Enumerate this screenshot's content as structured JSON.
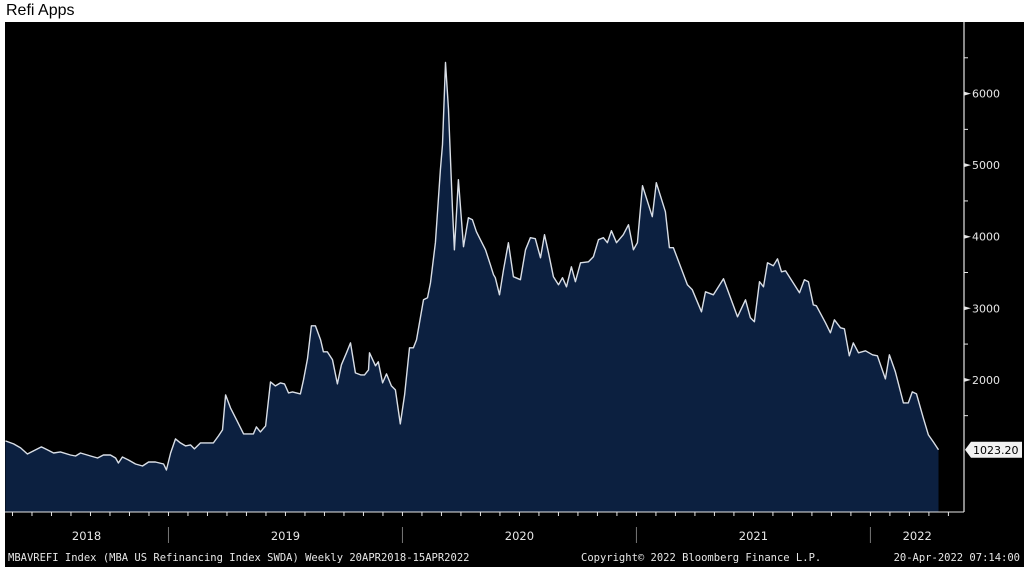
{
  "title": "Refi Apps",
  "footer": {
    "security": "MBAVREFI Index (MBA US Refinancing Index SWDA)  Weekly 20APR2018-15APR2022",
    "copyright": "Copyright© 2022 Bloomberg Finance L.P.",
    "timestamp": "20-Apr-2022 07:14:00"
  },
  "chart_data": {
    "type": "area",
    "title": "Refi Apps",
    "xlabel": "",
    "ylabel": "",
    "x_unit": "decimal year",
    "xlim": [
      2018.28,
      2022.4
    ],
    "ylim": [
      154,
      7000
    ],
    "y_ticks": [
      2000,
      3000,
      4000,
      5000,
      6000
    ],
    "y_tick_labels": [
      "2000",
      "3000",
      "4000",
      "5000",
      "6000"
    ],
    "x_tick_labels": [
      "2018",
      "2019",
      "2020",
      "2021",
      "2022"
    ],
    "year_label_positions": [
      2018.65,
      2019.5,
      2020.5,
      2021.5,
      2022.2
    ],
    "year_boundaries": [
      2019,
      2020,
      2021,
      2022
    ],
    "last_value": 1023.2,
    "last_value_label": "1023.20",
    "line_color": "#d9dee6",
    "fill_color": "#0c2040",
    "background": "#000000",
    "grid": false,
    "series": [
      {
        "name": "MBAVREFI Index",
        "points": [
          [
            2018.303,
            1147
          ],
          [
            2018.338,
            1105
          ],
          [
            2018.368,
            1049
          ],
          [
            2018.397,
            965
          ],
          [
            2018.423,
            1007
          ],
          [
            2018.457,
            1063
          ],
          [
            2018.483,
            1021
          ],
          [
            2018.509,
            979
          ],
          [
            2018.538,
            993
          ],
          [
            2018.581,
            951
          ],
          [
            2018.603,
            937
          ],
          [
            2018.624,
            979
          ],
          [
            2018.667,
            937
          ],
          [
            2018.697,
            909
          ],
          [
            2018.722,
            951
          ],
          [
            2018.752,
            951
          ],
          [
            2018.774,
            909
          ],
          [
            2018.786,
            839
          ],
          [
            2018.803,
            923
          ],
          [
            2018.829,
            881
          ],
          [
            2018.859,
            825
          ],
          [
            2018.889,
            797
          ],
          [
            2018.915,
            853
          ],
          [
            2018.944,
            853
          ],
          [
            2018.979,
            825
          ],
          [
            2018.991,
            741
          ],
          [
            2019.009,
            979
          ],
          [
            2019.03,
            1175
          ],
          [
            2019.051,
            1119
          ],
          [
            2019.073,
            1077
          ],
          [
            2019.094,
            1091
          ],
          [
            2019.111,
            1035
          ],
          [
            2019.137,
            1119
          ],
          [
            2019.171,
            1119
          ],
          [
            2019.192,
            1119
          ],
          [
            2019.214,
            1217
          ],
          [
            2019.231,
            1301
          ],
          [
            2019.244,
            1790
          ],
          [
            2019.265,
            1608
          ],
          [
            2019.291,
            1441
          ],
          [
            2019.321,
            1245
          ],
          [
            2019.342,
            1245
          ],
          [
            2019.363,
            1245
          ],
          [
            2019.376,
            1343
          ],
          [
            2019.393,
            1273
          ],
          [
            2019.415,
            1357
          ],
          [
            2019.436,
            1972
          ],
          [
            2019.457,
            1916
          ],
          [
            2019.479,
            1958
          ],
          [
            2019.496,
            1944
          ],
          [
            2019.513,
            1818
          ],
          [
            2019.53,
            1832
          ],
          [
            2019.564,
            1804
          ],
          [
            2019.577,
            2000
          ],
          [
            2019.594,
            2294
          ],
          [
            2019.611,
            2755
          ],
          [
            2019.628,
            2755
          ],
          [
            2019.65,
            2559
          ],
          [
            2019.662,
            2392
          ],
          [
            2019.679,
            2392
          ],
          [
            2019.701,
            2280
          ],
          [
            2019.722,
            1944
          ],
          [
            2019.739,
            2210
          ],
          [
            2019.761,
            2378
          ],
          [
            2019.778,
            2517
          ],
          [
            2019.799,
            2098
          ],
          [
            2019.821,
            2070
          ],
          [
            2019.838,
            2070
          ],
          [
            2019.855,
            2140
          ],
          [
            2019.859,
            2378
          ],
          [
            2019.885,
            2196
          ],
          [
            2019.897,
            2252
          ],
          [
            2019.915,
            1958
          ],
          [
            2019.932,
            2084
          ],
          [
            2019.953,
            1916
          ],
          [
            2019.97,
            1860
          ],
          [
            2019.991,
            1385
          ],
          [
            2020.009,
            1790
          ],
          [
            2020.03,
            2448
          ],
          [
            2020.047,
            2448
          ],
          [
            2020.06,
            2559
          ],
          [
            2020.09,
            3119
          ],
          [
            2020.107,
            3147
          ],
          [
            2020.12,
            3357
          ],
          [
            2020.141,
            3916
          ],
          [
            2020.162,
            4937
          ],
          [
            2020.171,
            5287
          ],
          [
            2020.184,
            6434
          ],
          [
            2020.197,
            5776
          ],
          [
            2020.214,
            4378
          ],
          [
            2020.222,
            3818
          ],
          [
            2020.239,
            4797
          ],
          [
            2020.261,
            3860
          ],
          [
            2020.282,
            4266
          ],
          [
            2020.299,
            4238
          ],
          [
            2020.316,
            4070
          ],
          [
            2020.333,
            3958
          ],
          [
            2020.355,
            3818
          ],
          [
            2020.376,
            3608
          ],
          [
            2020.389,
            3469
          ],
          [
            2020.397,
            3427
          ],
          [
            2020.415,
            3189
          ],
          [
            2020.432,
            3538
          ],
          [
            2020.453,
            3916
          ],
          [
            2020.474,
            3441
          ],
          [
            2020.504,
            3399
          ],
          [
            2020.526,
            3818
          ],
          [
            2020.547,
            3986
          ],
          [
            2020.568,
            3972
          ],
          [
            2020.59,
            3706
          ],
          [
            2020.607,
            4028
          ],
          [
            2020.624,
            3776
          ],
          [
            2020.645,
            3441
          ],
          [
            2020.667,
            3329
          ],
          [
            2020.684,
            3427
          ],
          [
            2020.701,
            3301
          ],
          [
            2020.722,
            3580
          ],
          [
            2020.739,
            3371
          ],
          [
            2020.761,
            3636
          ],
          [
            2020.795,
            3650
          ],
          [
            2020.816,
            3720
          ],
          [
            2020.838,
            3958
          ],
          [
            2020.859,
            3986
          ],
          [
            2020.876,
            3916
          ],
          [
            2020.893,
            4084
          ],
          [
            2020.915,
            3916
          ],
          [
            2020.944,
            4028
          ],
          [
            2020.966,
            4168
          ],
          [
            2020.987,
            3818
          ],
          [
            2021.004,
            3916
          ],
          [
            2021.026,
            4713
          ],
          [
            2021.068,
            4280
          ],
          [
            2021.085,
            4755
          ],
          [
            2021.124,
            4350
          ],
          [
            2021.141,
            3846
          ],
          [
            2021.158,
            3846
          ],
          [
            2021.218,
            3329
          ],
          [
            2021.239,
            3259
          ],
          [
            2021.278,
            2951
          ],
          [
            2021.295,
            3231
          ],
          [
            2021.329,
            3189
          ],
          [
            2021.372,
            3413
          ],
          [
            2021.432,
            2881
          ],
          [
            2021.466,
            3119
          ],
          [
            2021.487,
            2867
          ],
          [
            2021.504,
            2811
          ],
          [
            2021.526,
            3371
          ],
          [
            2021.543,
            3301
          ],
          [
            2021.56,
            3636
          ],
          [
            2021.585,
            3594
          ],
          [
            2021.603,
            3692
          ],
          [
            2021.62,
            3510
          ],
          [
            2021.637,
            3524
          ],
          [
            2021.697,
            3217
          ],
          [
            2021.718,
            3399
          ],
          [
            2021.735,
            3371
          ],
          [
            2021.756,
            3049
          ],
          [
            2021.769,
            3035
          ],
          [
            2021.808,
            2797
          ],
          [
            2021.829,
            2657
          ],
          [
            2021.846,
            2839
          ],
          [
            2021.872,
            2727
          ],
          [
            2021.889,
            2713
          ],
          [
            2021.91,
            2336
          ],
          [
            2021.927,
            2517
          ],
          [
            2021.949,
            2378
          ],
          [
            2021.979,
            2406
          ],
          [
            2022.009,
            2350
          ],
          [
            2022.03,
            2336
          ],
          [
            2022.064,
            2014
          ],
          [
            2022.081,
            2350
          ],
          [
            2022.107,
            2112
          ],
          [
            2022.141,
            1678
          ],
          [
            2022.162,
            1678
          ],
          [
            2022.179,
            1832
          ],
          [
            2022.197,
            1804
          ],
          [
            2022.226,
            1469
          ],
          [
            2022.248,
            1231
          ],
          [
            2022.269,
            1133
          ],
          [
            2022.291,
            1023.2
          ]
        ]
      }
    ]
  }
}
